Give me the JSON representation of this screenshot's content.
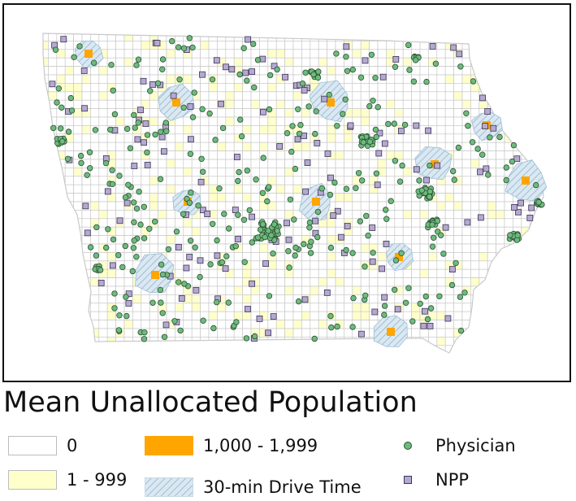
{
  "legend": {
    "title": "Mean Unallocated Population",
    "items": [
      {
        "key": "zero",
        "label": "0",
        "color": "#ffffff"
      },
      {
        "key": "low",
        "label": "1 - 999",
        "color": "#ffffcc"
      },
      {
        "key": "high",
        "label": "1,000 - 1,999",
        "color": "#ffa500"
      },
      {
        "key": "drive",
        "label": "30-min Drive Time",
        "color": "#a9c8dc"
      },
      {
        "key": "physician",
        "label": "Physician",
        "color": "#6dbb7d"
      },
      {
        "key": "npp",
        "label": "NPP",
        "color": "#b5a9d1"
      }
    ]
  },
  "colors": {
    "grid_line": "#c9c9c9",
    "frame": "#111111",
    "hatch_fill": "#dbe8f1",
    "hatch_line": "#9dbfd6"
  },
  "map": {
    "layers": [
      "township grid",
      "30-min drive time areas",
      "unallocated population cells",
      "physician locations",
      "NPP locations"
    ]
  }
}
